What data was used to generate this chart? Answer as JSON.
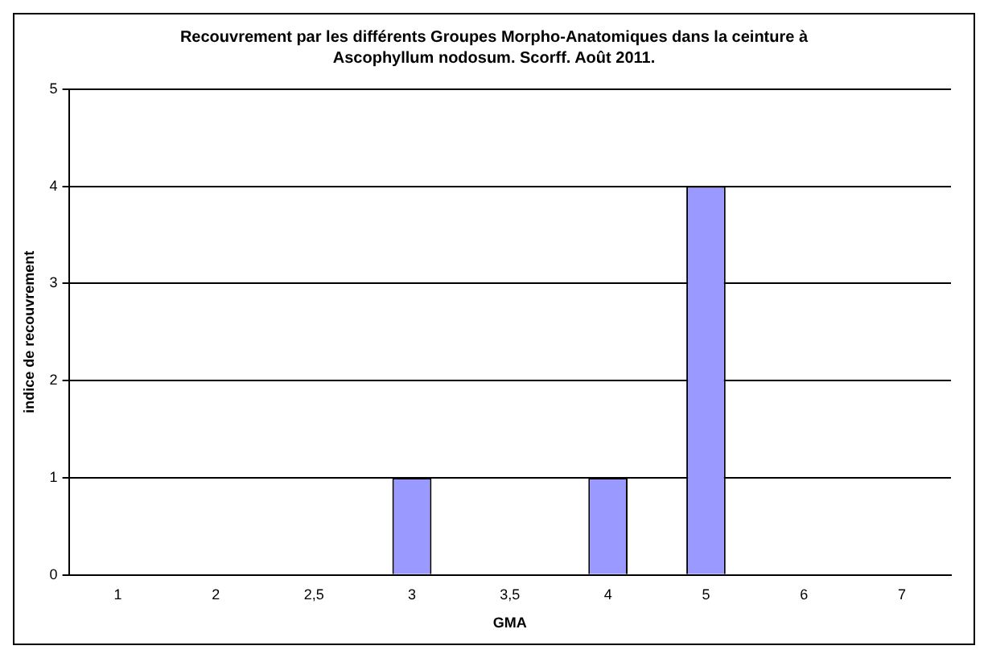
{
  "chart_data": {
    "type": "bar",
    "title": "Recouvrement par les différents Groupes Morpho-Anatomiques dans la ceinture à Ascophyllum nodosum. Scorff. Août 2011.",
    "xlabel": "GMA",
    "ylabel": "indice de recouvrement",
    "categories": [
      "1",
      "2",
      "2,5",
      "3",
      "3,5",
      "4",
      "5",
      "6",
      "7"
    ],
    "values": [
      0,
      0,
      0,
      1,
      0,
      1,
      4,
      0,
      0
    ],
    "color": "#9999ff",
    "ylim": [
      0,
      5
    ],
    "yticks": [
      0,
      1,
      2,
      3,
      4,
      5
    ],
    "grid": "y",
    "legend": false
  }
}
